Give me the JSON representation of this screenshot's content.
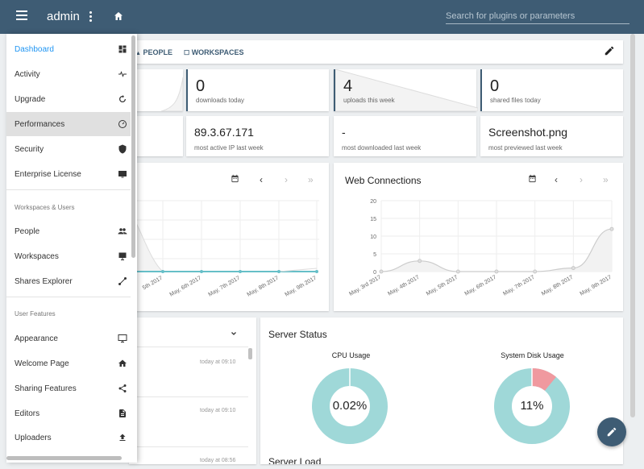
{
  "appbar": {
    "title": "admin",
    "search_placeholder": "Search for plugins or parameters",
    "icons": [
      "menu-icon",
      "more-vert-icon",
      "home-icon"
    ]
  },
  "tabs": [
    {
      "label": "PEOPLE",
      "icon": "people-icon"
    },
    {
      "label": "WORKSPACES",
      "icon": "workspaces-icon"
    }
  ],
  "stats": [
    {
      "value": "0",
      "label": "downloads today"
    },
    {
      "value": "4",
      "label": "uploads this week"
    },
    {
      "value": "0",
      "label": "shared files today"
    }
  ],
  "info": [
    {
      "value": "89.3.67.171",
      "label": "most active IP last week"
    },
    {
      "value": "-",
      "label": "most downloaded last week"
    },
    {
      "value": "Screenshot.png",
      "label": "most previewed last week"
    }
  ],
  "sidebar": {
    "items": [
      {
        "label": "Dashboard",
        "icon": "dashboard-icon"
      },
      {
        "label": "Activity",
        "icon": "activity-icon"
      },
      {
        "label": "Upgrade",
        "icon": "upgrade-icon"
      },
      {
        "label": "Performances",
        "icon": "performances-icon"
      },
      {
        "label": "Security",
        "icon": "shield-icon"
      },
      {
        "label": "Enterprise License",
        "icon": "license-icon"
      }
    ],
    "section_workspaces": "Workspaces & Users",
    "ws_items": [
      {
        "label": "People",
        "icon": "people-icon"
      },
      {
        "label": "Workspaces",
        "icon": "workspaces-icon"
      },
      {
        "label": "Shares Explorer",
        "icon": "share-link-icon"
      }
    ],
    "section_features": "User Features",
    "feat_items": [
      {
        "label": "Appearance",
        "icon": "monitor-icon"
      },
      {
        "label": "Welcome Page",
        "icon": "home-icon"
      },
      {
        "label": "Sharing Features",
        "icon": "share-icon"
      },
      {
        "label": "Editors",
        "icon": "document-icon"
      },
      {
        "label": "Uploaders",
        "icon": "upload-icon"
      }
    ]
  },
  "left_chart": {
    "x_labels": [
      "5th 2017",
      "May, 6th 2017",
      "May, 7th 2017",
      "May, 8th 2017",
      "May, 9th 2017"
    ]
  },
  "web_connections": {
    "title": "Web Connections"
  },
  "chart_data": {
    "type": "area",
    "title": "Web Connections",
    "categories": [
      "May, 3rd 2017",
      "May, 4th 2017",
      "May, 5th 2017",
      "May, 6th 2017",
      "May, 7th 2017",
      "May, 8th 2017",
      "May, 9th 2017"
    ],
    "values": [
      0,
      3,
      0,
      0,
      0,
      1,
      12
    ],
    "yticks": [
      0,
      5,
      10,
      15,
      20
    ],
    "ylim": [
      0,
      20
    ],
    "grid": true,
    "color": "#cccccc"
  },
  "activity_list": {
    "times": [
      "today at 09:10",
      "today at 09:10",
      "today at 08:56"
    ]
  },
  "server_status": {
    "title": "Server Status",
    "cpu_label": "CPU Usage",
    "cpu_value": "0.02%",
    "cpu_fraction": 0.0002,
    "disk_label": "System Disk Usage",
    "disk_value": "11%",
    "disk_fraction": 0.11,
    "load_title": "Server Load",
    "colors": {
      "free": "#9fd8d8",
      "used": "#f0999f"
    }
  }
}
